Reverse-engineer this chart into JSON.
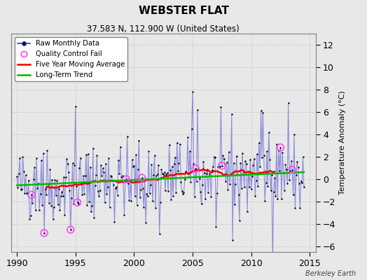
{
  "title": "WEBSTER FLAT",
  "subtitle": "37.583 N, 112.900 W (United States)",
  "ylabel_right": "Temperature Anomaly (°C)",
  "watermark": "Berkeley Earth",
  "xlim": [
    1989.5,
    2015.5
  ],
  "ylim": [
    -6.5,
    13
  ],
  "yticks": [
    -6,
    -4,
    -2,
    0,
    2,
    4,
    6,
    8,
    10,
    12
  ],
  "xticks": [
    1990,
    1995,
    2000,
    2005,
    2010,
    2015
  ],
  "bg_color": "#e8e8e8",
  "plot_bg_color": "#e8e8e8",
  "raw_line_color": "#3333cc",
  "raw_line_alpha": 0.5,
  "raw_dot_color": "#000000",
  "qc_fail_color": "#ff44ff",
  "moving_avg_color": "#ee0000",
  "trend_color": "#00bb00",
  "legend_loc": "upper left",
  "seed": 42,
  "n_months": 295,
  "start_year": 1990.0,
  "trend_slope": 0.048,
  "trend_intercept": -0.55
}
